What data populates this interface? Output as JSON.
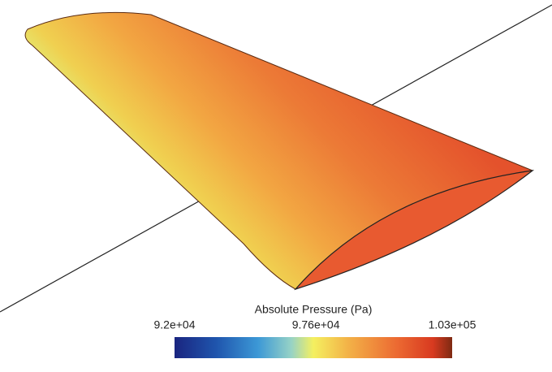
{
  "colorbar": {
    "title": "Absolute Pressure (Pa)",
    "ticks": [
      {
        "value": 92000,
        "label": "9.2e+04"
      },
      {
        "value": 97600,
        "label": "9.76e+04"
      },
      {
        "value": 103000,
        "label": "1.03e+05"
      }
    ]
  }
}
